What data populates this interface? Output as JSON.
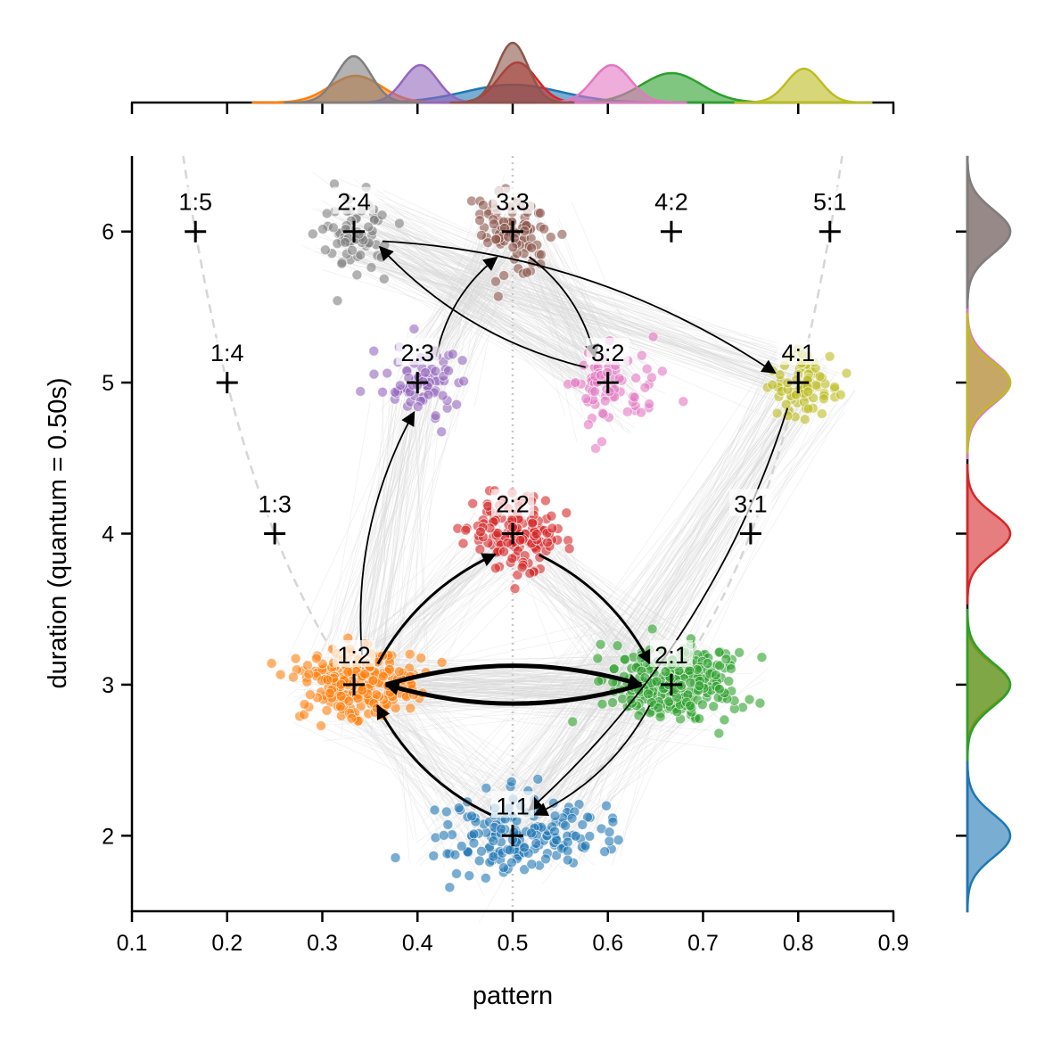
{
  "chart_data": {
    "type": "scatter",
    "xlabel": "pattern",
    "ylabel": "duration (quantum = 0.50s)",
    "xlim": [
      0.1,
      0.9
    ],
    "ylim": [
      1.5,
      6.5
    ],
    "xticks": [
      "0.1",
      "0.2",
      "0.3",
      "0.4",
      "0.5",
      "0.6",
      "0.7",
      "0.8",
      "0.9"
    ],
    "yticks": [
      "2",
      "3",
      "4",
      "5",
      "6"
    ],
    "grid": false,
    "reference_lines": {
      "vertical_dotted_x": 0.5,
      "dashed_curves": [
        "x = 1/y",
        "x = 1 - 1/y"
      ]
    },
    "ratio_markers": [
      {
        "label": "1:5",
        "x": 0.1667,
        "y": 6
      },
      {
        "label": "2:4",
        "x": 0.3333,
        "y": 6
      },
      {
        "label": "3:3",
        "x": 0.5,
        "y": 6
      },
      {
        "label": "4:2",
        "x": 0.6667,
        "y": 6
      },
      {
        "label": "5:1",
        "x": 0.8333,
        "y": 6
      },
      {
        "label": "1:4",
        "x": 0.2,
        "y": 5
      },
      {
        "label": "2:3",
        "x": 0.4,
        "y": 5
      },
      {
        "label": "3:2",
        "x": 0.6,
        "y": 5
      },
      {
        "label": "4:1",
        "x": 0.8,
        "y": 5
      },
      {
        "label": "1:3",
        "x": 0.25,
        "y": 4
      },
      {
        "label": "2:2",
        "x": 0.5,
        "y": 4
      },
      {
        "label": "3:1",
        "x": 0.75,
        "y": 4
      },
      {
        "label": "1:2",
        "x": 0.3333,
        "y": 3
      },
      {
        "label": "2:1",
        "x": 0.6667,
        "y": 3
      },
      {
        "label": "1:1",
        "x": 0.5,
        "y": 2
      }
    ],
    "clusters": [
      {
        "ratio": "1:1",
        "color": "#1f77b4",
        "x": 0.5,
        "y": 2.0,
        "sx": 0.045,
        "sy": 0.13,
        "n": 170
      },
      {
        "ratio": "1:2",
        "color": "#ff7f0e",
        "x": 0.335,
        "y": 3.0,
        "sx": 0.03,
        "sy": 0.12,
        "n": 260
      },
      {
        "ratio": "2:1",
        "color": "#2ca02c",
        "x": 0.667,
        "y": 3.0,
        "sx": 0.035,
        "sy": 0.13,
        "n": 260
      },
      {
        "ratio": "2:2",
        "color": "#d62728",
        "x": 0.505,
        "y": 4.0,
        "sx": 0.022,
        "sy": 0.12,
        "n": 150
      },
      {
        "ratio": "2:3",
        "color": "#9467bd",
        "x": 0.403,
        "y": 5.0,
        "sx": 0.02,
        "sy": 0.12,
        "n": 80
      },
      {
        "ratio": "3:2",
        "color": "#e377c2",
        "x": 0.604,
        "y": 5.0,
        "sx": 0.022,
        "sy": 0.13,
        "n": 70
      },
      {
        "ratio": "3:3",
        "color": "#8c564b",
        "x": 0.5,
        "y": 6.0,
        "sx": 0.018,
        "sy": 0.13,
        "n": 90
      },
      {
        "ratio": "2:4",
        "color": "#7f7f7f",
        "x": 0.333,
        "y": 6.0,
        "sx": 0.02,
        "sy": 0.13,
        "n": 70
      },
      {
        "ratio": "4:1",
        "color": "#bcbd22",
        "x": 0.806,
        "y": 5.0,
        "sx": 0.02,
        "sy": 0.12,
        "n": 80
      }
    ],
    "transitions": [
      {
        "from": "1:2",
        "to": "2:1",
        "weight": "heavy"
      },
      {
        "from": "2:1",
        "to": "1:2",
        "weight": "heavy"
      },
      {
        "from": "1:2",
        "to": "2:2",
        "weight": "medium"
      },
      {
        "from": "2:2",
        "to": "2:1",
        "weight": "medium"
      },
      {
        "from": "1:1",
        "to": "1:2",
        "weight": "medium"
      },
      {
        "from": "2:1",
        "to": "1:1",
        "weight": "light"
      },
      {
        "from": "4:1",
        "to": "1:1",
        "weight": "light"
      },
      {
        "from": "1:2",
        "to": "2:3",
        "weight": "light"
      },
      {
        "from": "2:3",
        "to": "3:3",
        "weight": "light"
      },
      {
        "from": "3:3",
        "to": "3:2",
        "weight": "light"
      },
      {
        "from": "3:2",
        "to": "2:4",
        "weight": "light"
      },
      {
        "from": "2:4",
        "to": "4:1",
        "weight": "light"
      }
    ],
    "marginal_top": "KDE of pattern per cluster",
    "marginal_right": "KDE of duration per cluster"
  }
}
